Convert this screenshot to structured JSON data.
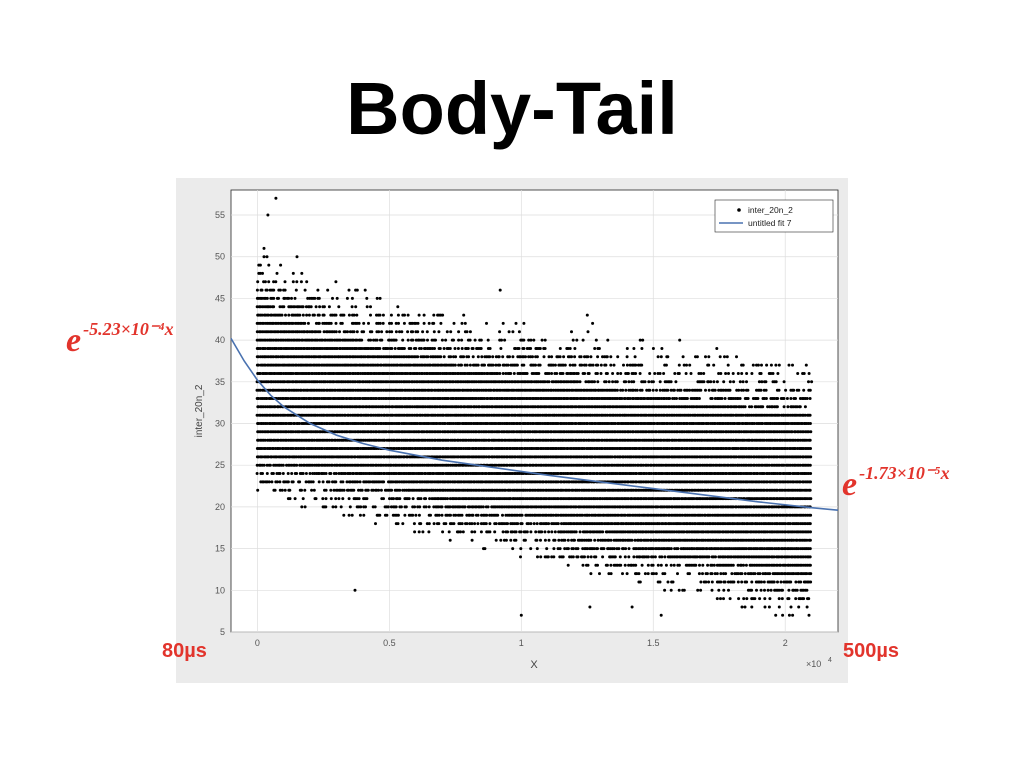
{
  "slide": {
    "title": "Body-Tail",
    "annotation_left": {
      "base": "e",
      "exponent": "-5.23×10⁻⁴x"
    },
    "annotation_right": {
      "base": "e",
      "exponent": "-1.73×10⁻⁵x"
    },
    "time_label_left": "80µs",
    "time_label_right": "500µs",
    "accent_color": "#e2342c"
  },
  "chart_data": {
    "type": "scatter",
    "xlabel": "X",
    "ylabel": "inter_20n_2",
    "x_multiplier_label": "×10",
    "x_multiplier_exponent": "4",
    "xlim": [
      -0.1,
      2.2
    ],
    "ylim": [
      5,
      58
    ],
    "x_ticks": [
      0,
      0.5,
      1,
      1.5,
      2
    ],
    "x_tick_labels": [
      "0",
      "0.5",
      "1",
      "1.5",
      "2"
    ],
    "y_ticks": [
      5,
      10,
      15,
      20,
      25,
      30,
      35,
      40,
      45,
      50,
      55
    ],
    "y_tick_labels": [
      "5",
      "10",
      "15",
      "20",
      "25",
      "30",
      "35",
      "40",
      "45",
      "50",
      "55"
    ],
    "grid": true,
    "legend_position": "top-right",
    "series": [
      {
        "name": "inter_20n_2",
        "kind": "points",
        "color": "#000000",
        "x_range": [
          0,
          2.1
        ],
        "y_band_start": [
          25,
          50
        ],
        "y_band_end": [
          10,
          34
        ],
        "outliers": [
          {
            "x": 0.04,
            "y": 55
          },
          {
            "x": 0.07,
            "y": 57
          },
          {
            "x": 0.15,
            "y": 50
          },
          {
            "x": 0.92,
            "y": 46
          },
          {
            "x": 1.25,
            "y": 43
          },
          {
            "x": 1.27,
            "y": 42
          },
          {
            "x": 0.37,
            "y": 10
          },
          {
            "x": 1.0,
            "y": 7
          },
          {
            "x": 1.26,
            "y": 8
          },
          {
            "x": 1.42,
            "y": 8
          },
          {
            "x": 1.53,
            "y": 7
          },
          {
            "x": 1.94,
            "y": 8
          },
          {
            "x": 2.09,
            "y": 7
          },
          {
            "x": 2.08,
            "y": 37
          },
          {
            "x": 2.1,
            "y": 35
          },
          {
            "x": 1.77,
            "y": 38
          },
          {
            "x": 1.6,
            "y": 40
          },
          {
            "x": 1.46,
            "y": 40
          }
        ]
      },
      {
        "name": "untitled fit 7",
        "kind": "line",
        "color": "#4a72b0",
        "x": [
          -0.1,
          -0.05,
          0,
          0.05,
          0.1,
          0.2,
          0.3,
          0.4,
          0.5,
          0.7,
          0.9,
          1.1,
          1.3,
          1.5,
          1.7,
          1.9,
          2.1,
          2.2
        ],
        "y": [
          40.2,
          37.5,
          35.2,
          33.4,
          32.0,
          30.0,
          28.6,
          27.6,
          26.8,
          25.6,
          24.7,
          23.8,
          23.0,
          22.2,
          21.4,
          20.6,
          19.9,
          19.6
        ]
      }
    ]
  }
}
